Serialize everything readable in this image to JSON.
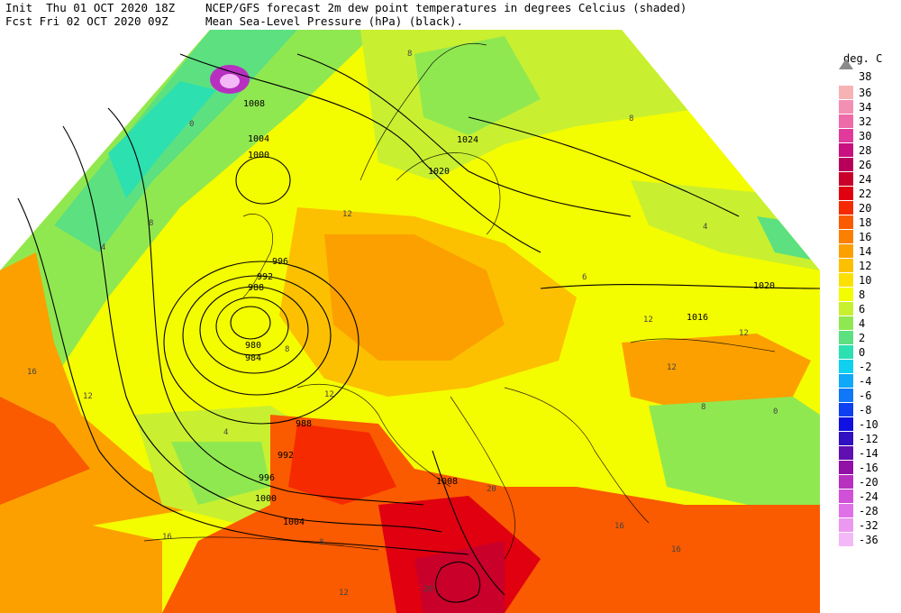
{
  "header": {
    "init": "Init  Thu 01 OCT 2020 18Z",
    "fcst": "Fcst Fri 02 OCT 2020 09Z",
    "line1": "NCEP/GFS forecast 2m dew point temperatures in degrees Celcius (shaded)",
    "line2": "Mean Sea-Level Pressure (hPa) (black)."
  },
  "colorbar": {
    "title": "deg. C",
    "top_label": "38",
    "steps": [
      {
        "label": "36",
        "color": "#f7b3b3"
      },
      {
        "label": "34",
        "color": "#f48fb4"
      },
      {
        "label": "32",
        "color": "#ee6aa8"
      },
      {
        "label": "30",
        "color": "#e23a9a"
      },
      {
        "label": "28",
        "color": "#c8107e"
      },
      {
        "label": "26",
        "color": "#b8005a"
      },
      {
        "label": "24",
        "color": "#c8002a"
      },
      {
        "label": "22",
        "color": "#e00010"
      },
      {
        "label": "20",
        "color": "#f52a00"
      },
      {
        "label": "18",
        "color": "#fa5a00"
      },
      {
        "label": "16",
        "color": "#fc8000"
      },
      {
        "label": "14",
        "color": "#fca000"
      },
      {
        "label": "12",
        "color": "#fcc000"
      },
      {
        "label": "10",
        "color": "#fce000"
      },
      {
        "label": "8",
        "color": "#f4fc00"
      },
      {
        "label": "6",
        "color": "#c8f030"
      },
      {
        "label": "4",
        "color": "#90e850"
      },
      {
        "label": "2",
        "color": "#5ce080"
      },
      {
        "label": "0",
        "color": "#2ce0b0"
      },
      {
        "label": "-2",
        "color": "#10d0f0"
      },
      {
        "label": "-4",
        "color": "#10a8f8"
      },
      {
        "label": "-6",
        "color": "#1078f8"
      },
      {
        "label": "-8",
        "color": "#0c40f0"
      },
      {
        "label": "-10",
        "color": "#1010e0"
      },
      {
        "label": "-12",
        "color": "#3010c0"
      },
      {
        "label": "-14",
        "color": "#6010b0"
      },
      {
        "label": "-16",
        "color": "#9010a8"
      },
      {
        "label": "-20",
        "color": "#b830c0"
      },
      {
        "label": "-24",
        "color": "#d050d8"
      },
      {
        "label": "-28",
        "color": "#e070e8"
      },
      {
        "label": "-32",
        "color": "#ec98f0"
      },
      {
        "label": "-36",
        "color": "#f4b8f8"
      }
    ]
  },
  "isobar_labels": [
    "1008",
    "1004",
    "1000",
    "996",
    "992",
    "988",
    "980",
    "984",
    "1020",
    "1024",
    "1020",
    "1016",
    "988",
    "992",
    "996",
    "1000",
    "1004",
    "1008"
  ],
  "dewpoint_labels": [
    "0",
    "8",
    "4",
    "16",
    "12",
    "12",
    "8",
    "12",
    "6",
    "8",
    "4",
    "12",
    "12",
    "4",
    "12",
    "16",
    "8",
    "8",
    "0",
    "16",
    "16",
    "20",
    "20",
    "12",
    "8"
  ]
}
